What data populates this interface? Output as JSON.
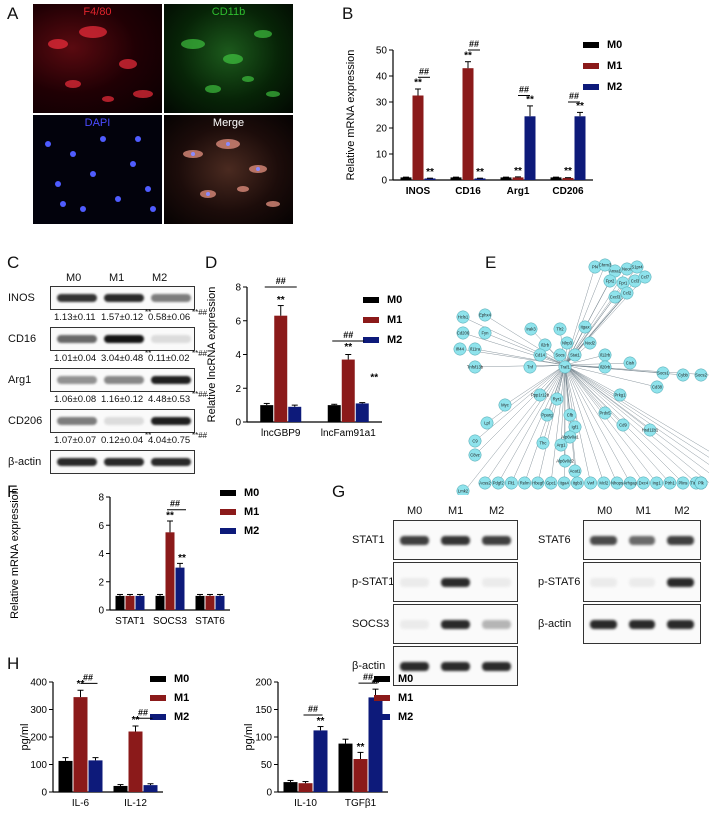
{
  "panels": {
    "A": "A",
    "B": "B",
    "C": "C",
    "D": "D",
    "E": "E",
    "F": "F",
    "G": "G",
    "H": "H"
  },
  "panelA": {
    "titles": [
      "F4/80",
      "CD11b",
      "DAPI",
      "Merge"
    ],
    "colors": {
      "f480": "#e0242c",
      "cd11b": "#2fbf2f",
      "dapi": "#3b3bff",
      "merge": "#ffffff"
    }
  },
  "legend": {
    "items": [
      "M0",
      "M1",
      "M2"
    ],
    "colors": [
      "#000000",
      "#8b1a1a",
      "#0d1a7a"
    ]
  },
  "panelC": {
    "header": [
      "M0",
      "M1",
      "M2"
    ],
    "rows": [
      {
        "label": "INOS",
        "quant": [
          "1.13±0.11",
          "1.57±0.12",
          "0.58±0.06"
        ],
        "marks": [
          "",
          "**",
          "**##"
        ]
      },
      {
        "label": "CD16",
        "quant": [
          "1.01±0.04",
          "3.04±0.48",
          "0.11±0.02"
        ],
        "marks": [
          "",
          "**",
          "**##"
        ]
      },
      {
        "label": "Arg1",
        "quant": [
          "1.06±0.08",
          "1.16±0.12",
          "4.48±0.53"
        ],
        "marks": [
          "",
          "",
          "**##"
        ]
      },
      {
        "label": "CD206",
        "quant": [
          "1.07±0.07",
          "0.12±0.04",
          "4.04±0.75"
        ],
        "marks": [
          "",
          "**",
          "**##"
        ]
      },
      {
        "label": "β-actin",
        "quant": [
          "",
          "",
          ""
        ],
        "marks": [
          "",
          "",
          ""
        ]
      }
    ]
  },
  "panelE": {
    "nodes": [
      "Pf4",
      "Chrm3",
      "Anxa1",
      "Neorl",
      "S1pr4",
      "Fpr2",
      "Fpr1",
      "Ccl3",
      "Ccl7",
      "Ccl2",
      "Cxcl3",
      "Hcls1",
      "Ephx4",
      "Irak3",
      "Tlr2",
      "Itgax",
      "Cd206",
      "Fyn",
      "Ifi44",
      "Il11ra",
      "Il2rb",
      "Nlrp3",
      "Nod2",
      "Socs",
      "Cd14",
      "Stat1",
      "Il12rb",
      "Tnfsf13b",
      "Tnf",
      "Traf1",
      "Il20rb",
      "Cish",
      "Socs1",
      "Cybb",
      "Socs2",
      "Cd38",
      "Prkg1",
      "Ppp1r12b",
      "Ryr1",
      "Prdx5",
      "Myc",
      "Pparg",
      "Cfb",
      "Cd9",
      "Hsd11b1",
      "Lpl",
      "Igf1",
      "C9",
      "C8vz",
      "Thc",
      "Arg1",
      "Alp6v0a1",
      "Alp6v0d2",
      "Acat1",
      "Acss2",
      "Pdgf2",
      "Flt1",
      "Relm",
      "Hbegf",
      "Gpc1",
      "Itga4",
      "Itgb3",
      "Vwf",
      "Mcl2",
      "Nhops",
      "Arhgap",
      "Dxc4",
      "Ing1",
      "Ptrh1",
      "Plins",
      "Timp3",
      "Nlrp12",
      "Dner",
      "Aph1b",
      "Rbfb3",
      "Plk",
      "Lmk2"
    ]
  },
  "panelG": {
    "left_header": [
      "M0",
      "M1",
      "M2"
    ],
    "left_rows": [
      "STAT1",
      "p-STAT1",
      "SOCS3",
      "β-actin"
    ],
    "right_header": [
      "M0",
      "M1",
      "M2"
    ],
    "right_rows": [
      "STAT6",
      "p-STAT6",
      "β-actin"
    ]
  },
  "chart_data": [
    {
      "id": "B",
      "type": "bar",
      "categories": [
        "INOS",
        "CD16",
        "Arg1",
        "CD206"
      ],
      "series": [
        {
          "name": "M0",
          "values": [
            1.0,
            1.0,
            1.0,
            1.0
          ]
        },
        {
          "name": "M1",
          "values": [
            32.5,
            43,
            1.0,
            0.8
          ]
        },
        {
          "name": "M2",
          "values": [
            0.6,
            0.6,
            24.5,
            24.5
          ]
        }
      ],
      "errors": [
        [
          0.1,
          0.1,
          0.1,
          0.1
        ],
        [
          2.5,
          2.5,
          0.2,
          0.1
        ],
        [
          0.1,
          0.1,
          4,
          1.5
        ]
      ],
      "ylabel": "Relative mRNA expression",
      "ylim": [
        0,
        50
      ],
      "yticks": [
        0,
        10,
        20,
        30,
        40,
        50
      ],
      "annotations": [
        "**",
        "**",
        "##",
        "**",
        "**",
        "##",
        "**",
        "**",
        "##",
        "**",
        "**",
        "##"
      ]
    },
    {
      "id": "D",
      "type": "bar",
      "categories": [
        "lncGBP9",
        "lncFam91a1"
      ],
      "series": [
        {
          "name": "M0",
          "values": [
            1.0,
            1.0
          ]
        },
        {
          "name": "M1",
          "values": [
            6.3,
            3.7
          ]
        },
        {
          "name": "M2",
          "values": [
            0.9,
            1.1
          ]
        }
      ],
      "errors": [
        [
          0.1,
          0.05
        ],
        [
          0.6,
          0.3
        ],
        [
          0.1,
          0.05
        ]
      ],
      "ylabel": "Relative lncRNA expression",
      "ylim": [
        0,
        8
      ],
      "yticks": [
        0,
        2,
        4,
        6,
        8
      ],
      "annotations": [
        "**",
        "##",
        "**",
        "##",
        "**"
      ]
    },
    {
      "id": "F",
      "type": "bar",
      "categories": [
        "STAT1",
        "SOCS3",
        "STAT6"
      ],
      "series": [
        {
          "name": "M0",
          "values": [
            1.0,
            1.0,
            1.0
          ]
        },
        {
          "name": "M1",
          "values": [
            1.0,
            5.5,
            1.0
          ]
        },
        {
          "name": "M2",
          "values": [
            1.0,
            3.0,
            1.0
          ]
        }
      ],
      "errors": [
        [
          0.1,
          0.1,
          0.1
        ],
        [
          0.1,
          0.8,
          0.1
        ],
        [
          0.1,
          0.3,
          0.1
        ]
      ],
      "ylabel": "Relative mRNA expression",
      "ylim": [
        0,
        8
      ],
      "yticks": [
        0,
        2,
        4,
        6,
        8
      ],
      "annotations": [
        "**",
        "##",
        "**"
      ]
    },
    {
      "id": "H1",
      "type": "bar",
      "categories": [
        "IL-6",
        "IL-12"
      ],
      "series": [
        {
          "name": "M0",
          "values": [
            113,
            22
          ]
        },
        {
          "name": "M1",
          "values": [
            345,
            220
          ]
        },
        {
          "name": "M2",
          "values": [
            115,
            25
          ]
        }
      ],
      "errors": [
        [
          12,
          5
        ],
        [
          25,
          20
        ],
        [
          10,
          5
        ]
      ],
      "ylabel": "pg/ml",
      "ylim": [
        0,
        400
      ],
      "yticks": [
        0,
        100,
        200,
        300,
        400
      ],
      "annotations": [
        "**",
        "##",
        "**",
        "##"
      ]
    },
    {
      "id": "H2",
      "type": "bar",
      "categories": [
        "IL-10",
        "TGFβ1"
      ],
      "series": [
        {
          "name": "M0",
          "values": [
            18,
            88
          ]
        },
        {
          "name": "M1",
          "values": [
            16,
            60
          ]
        },
        {
          "name": "M2",
          "values": [
            112,
            172
          ]
        }
      ],
      "errors": [
        [
          3,
          8
        ],
        [
          3,
          12
        ],
        [
          7,
          15
        ]
      ],
      "ylabel": "pg/ml",
      "ylim": [
        0,
        200
      ],
      "yticks": [
        0,
        50,
        100,
        150,
        200
      ],
      "annotations": [
        "##",
        "**",
        "**",
        "##",
        "**"
      ]
    }
  ]
}
